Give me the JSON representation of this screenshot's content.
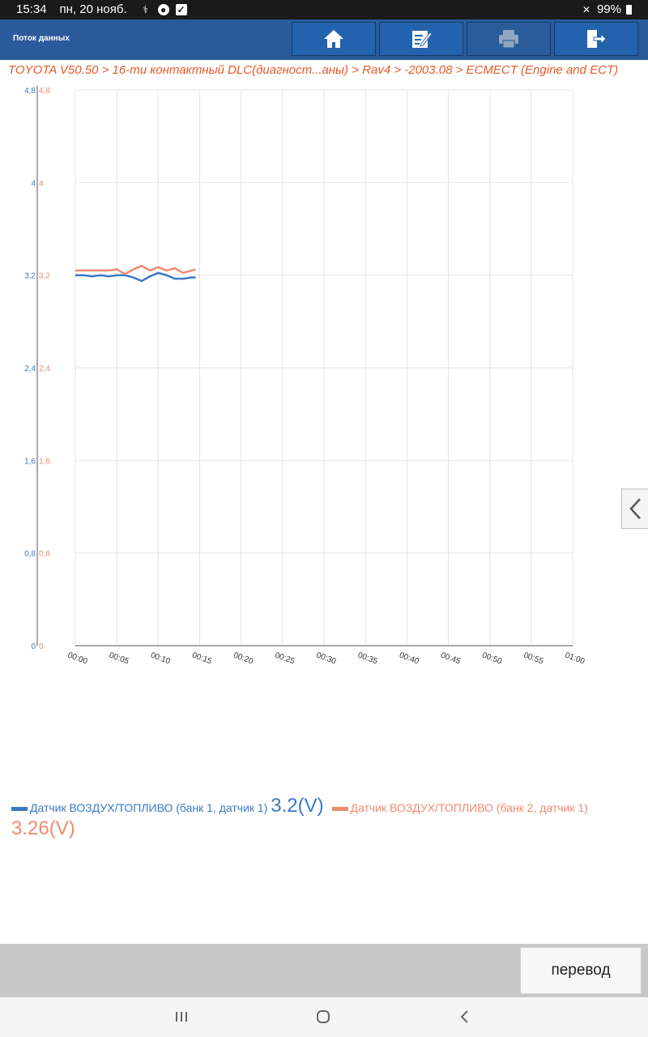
{
  "status_bar": {
    "time": "15:34",
    "date": "пн, 20 нояб.",
    "battery": "99%"
  },
  "toolbar": {
    "title": "Поток данных",
    "buttons": [
      {
        "name": "home-icon"
      },
      {
        "name": "edit-report-icon"
      },
      {
        "name": "print-icon"
      },
      {
        "name": "exit-icon"
      }
    ]
  },
  "breadcrumb": "TOYOTA V50.50 > 16-ти контактный DLC(диагност...аны) > Rav4 > -2003.08 > ECMECT (Engine and ECT)",
  "chart_data": {
    "type": "line",
    "x_ticks": [
      "00:00",
      "00:05",
      "00:10",
      "00:15",
      "00:20",
      "00:25",
      "00:30",
      "00:35",
      "00:40",
      "00:45",
      "00:50",
      "00:55",
      "01:00"
    ],
    "xlim": [
      0,
      60
    ],
    "y_ticks_left": [
      "0",
      "0,8",
      "1,6",
      "2,4",
      "3,2",
      "4",
      "4,8"
    ],
    "y_ticks_right": [
      "0",
      "0,8",
      "1,6",
      "2,4",
      "3,2",
      "4",
      "4,8"
    ],
    "ylim": [
      0,
      4.8
    ],
    "grid": true,
    "legend_position": "bottom",
    "series": [
      {
        "name": "Датчик ВОЗДУХ/ТОПЛИВО (банк 1, датчик 1)",
        "value_label": "3.2(V)",
        "color": "#3b7ac4",
        "x": [
          0,
          1,
          2,
          3,
          4,
          5,
          6,
          7,
          8,
          9,
          10,
          11,
          12,
          13,
          14,
          14.5
        ],
        "y": [
          3.2,
          3.2,
          3.19,
          3.2,
          3.19,
          3.2,
          3.2,
          3.18,
          3.15,
          3.19,
          3.22,
          3.2,
          3.17,
          3.17,
          3.18,
          3.18
        ]
      },
      {
        "name": "Датчик ВОЗДУХ/ТОПЛИВО (банк 2, датчик 1)",
        "value_label": "3.26(V)",
        "color": "#ee8a73",
        "x": [
          0,
          1,
          2,
          3,
          4,
          5,
          6,
          7,
          8,
          9,
          10,
          11,
          12,
          13,
          14,
          14.5
        ],
        "y": [
          3.24,
          3.24,
          3.24,
          3.24,
          3.24,
          3.25,
          3.21,
          3.25,
          3.28,
          3.24,
          3.27,
          3.24,
          3.26,
          3.22,
          3.24,
          3.25
        ]
      }
    ]
  },
  "bottom": {
    "translate_label": "перевод"
  },
  "nav": [
    {
      "name": "recent-apps-icon"
    },
    {
      "name": "home-nav-icon"
    },
    {
      "name": "back-nav-icon"
    }
  ]
}
